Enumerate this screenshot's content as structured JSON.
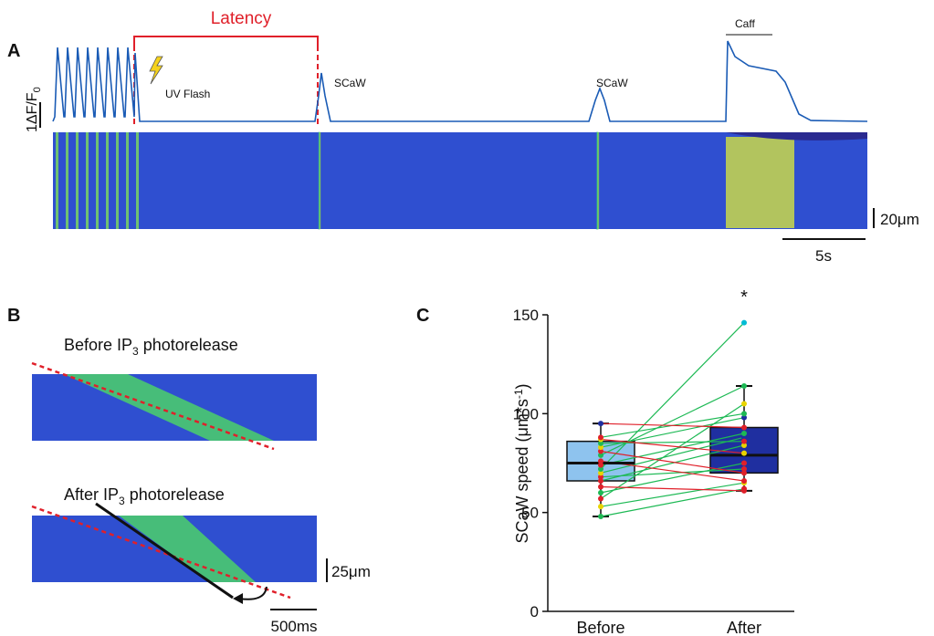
{
  "panel_a": {
    "label": "A",
    "latency": "Latency",
    "flash": "UV Flash",
    "events": [
      "SCaW",
      "SCaW"
    ],
    "caff": "Caff",
    "ylabel": "1ΔF/F",
    "ylabel_sub": "0",
    "scale_space": "20μm",
    "scale_time": "5s"
  },
  "panel_b": {
    "label": "B",
    "before": [
      "Before IP",
      "3",
      " photorelease"
    ],
    "after": [
      "After IP",
      "3",
      " photorelease"
    ],
    "scale_space": "25μm",
    "scale_time": "500ms"
  },
  "chart_data": {
    "type": "box",
    "label": "C",
    "significance": "*",
    "ylabel": [
      "SCaW speed (μm*s",
      "-1",
      ")"
    ],
    "categories": [
      "Before",
      "After"
    ],
    "boxes": [
      {
        "whislo": 48,
        "q1": 66,
        "med": 75,
        "q3": 86,
        "whishi": 95,
        "color": "#8ec3ee"
      },
      {
        "whislo": 61,
        "q1": 70,
        "med": 79,
        "q3": 93,
        "whishi": 114,
        "color": "#1f2fa0"
      }
    ],
    "pairs": {
      "before": [
        48,
        53,
        57,
        60,
        63,
        66,
        68,
        70,
        72,
        74,
        76,
        79,
        81,
        83,
        85,
        87,
        88,
        95
      ],
      "after": [
        62,
        65,
        105,
        75,
        61,
        84,
        72,
        88,
        146,
        90,
        66,
        114,
        70,
        98,
        86,
        80,
        100,
        93
      ],
      "line_colors": [
        "#1db954",
        "#1db954",
        "#1db954",
        "#1db954",
        "#e0202a",
        "#1db954",
        "#1db954",
        "#1db954",
        "#1db954",
        "#1db954",
        "#e0202a",
        "#1db954",
        "#e0202a",
        "#1db954",
        "#1db954",
        "#e0202a",
        "#1db954",
        "#e0202a"
      ],
      "point_colors_before": [
        "#1db954",
        "#e8d400",
        "#e0202a",
        "#1db954",
        "#e0202a",
        "#e0202a",
        "#e0202a",
        "#e8d400",
        "#1db954",
        "#e0202a",
        "#e0202a",
        "#1db954",
        "#e0202a",
        "#e8d400",
        "#1db954",
        "#e8d400",
        "#e0202a",
        "#1f2fa0"
      ],
      "point_colors_after": [
        "#e0202a",
        "#e8d400",
        "#e8d400",
        "#e0202a",
        "#e0202a",
        "#e8d400",
        "#e0202a",
        "#1f2fa0",
        "#00bcd4",
        "#1db954",
        "#e0202a",
        "#1db954",
        "#e0202a",
        "#1f2fa0",
        "#e0202a",
        "#e8d400",
        "#1db954",
        "#e0202a"
      ]
    },
    "ylim": [
      0,
      150
    ],
    "yticks": [
      0,
      50,
      100,
      150
    ]
  }
}
